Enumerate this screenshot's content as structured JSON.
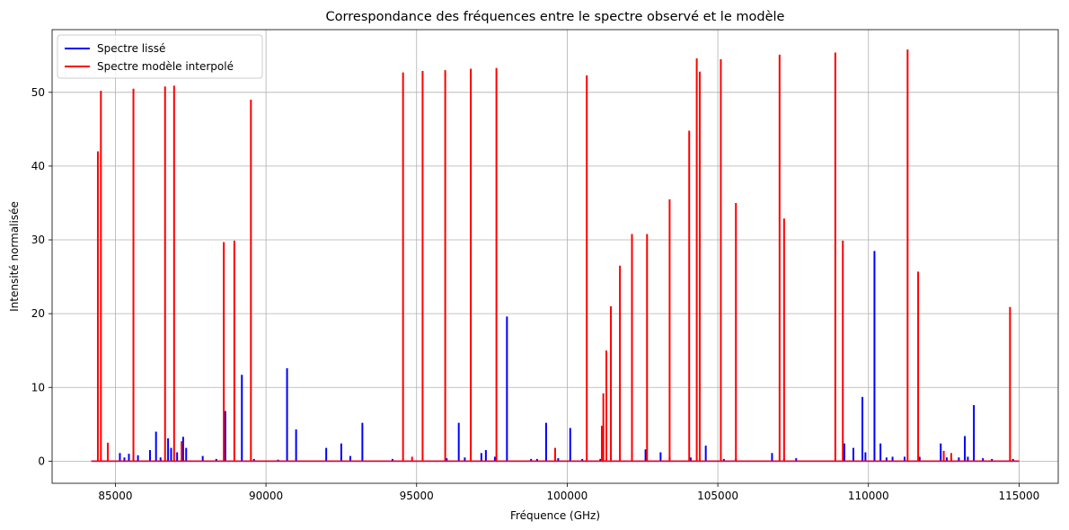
{
  "chart_data": {
    "type": "line",
    "title": "Correspondance des fréquences entre le spectre observé et le modèle",
    "xlabel": "Fréquence (GHz)",
    "ylabel": "Intensité normalisée",
    "xlim": [
      82900,
      116300
    ],
    "ylim": [
      -3,
      58.5
    ],
    "xticks": [
      85000,
      90000,
      95000,
      100000,
      105000,
      110000,
      115000
    ],
    "yticks": [
      0,
      10,
      20,
      30,
      40,
      50
    ],
    "grid": true,
    "legend_position": "top-left",
    "colors": {
      "observed": "#0000ff",
      "model": "#ff0000",
      "grid": "#b0b0b0"
    },
    "series": [
      {
        "name": "Spectre lissé",
        "color": "#0000ff",
        "x_range": [
          84200,
          115000
        ],
        "peaks": [
          [
            85150,
            1.1
          ],
          [
            85300,
            0.5
          ],
          [
            85450,
            1.0
          ],
          [
            85600,
            1.2
          ],
          [
            85750,
            0.8
          ],
          [
            86150,
            1.5
          ],
          [
            86350,
            4.0
          ],
          [
            86500,
            0.5
          ],
          [
            86750,
            3.1
          ],
          [
            86850,
            1.8
          ],
          [
            87050,
            1.2
          ],
          [
            87250,
            3.3
          ],
          [
            87350,
            1.8
          ],
          [
            87900,
            0.7
          ],
          [
            88350,
            0.3
          ],
          [
            88650,
            6.8
          ],
          [
            89200,
            11.7
          ],
          [
            89600,
            0.3
          ],
          [
            90400,
            0.2
          ],
          [
            90700,
            12.6
          ],
          [
            91000,
            4.3
          ],
          [
            92000,
            1.8
          ],
          [
            92500,
            2.4
          ],
          [
            92800,
            0.7
          ],
          [
            93200,
            5.2
          ],
          [
            94200,
            0.3
          ],
          [
            96000,
            0.4
          ],
          [
            96400,
            5.2
          ],
          [
            96600,
            0.5
          ],
          [
            97150,
            1.1
          ],
          [
            97300,
            1.5
          ],
          [
            97600,
            0.6
          ],
          [
            98000,
            19.6
          ],
          [
            98800,
            0.3
          ],
          [
            99000,
            0.3
          ],
          [
            99300,
            5.2
          ],
          [
            99700,
            0.4
          ],
          [
            100100,
            4.5
          ],
          [
            100500,
            0.3
          ],
          [
            101100,
            0.3
          ],
          [
            102600,
            1.6
          ],
          [
            103100,
            1.2
          ],
          [
            103400,
            0.6
          ],
          [
            104100,
            0.5
          ],
          [
            104600,
            2.1
          ],
          [
            105200,
            0.3
          ],
          [
            105600,
            0.3
          ],
          [
            106800,
            1.1
          ],
          [
            107200,
            0.3
          ],
          [
            107600,
            0.4
          ],
          [
            109200,
            2.4
          ],
          [
            109500,
            1.8
          ],
          [
            109800,
            8.7
          ],
          [
            109900,
            1.2
          ],
          [
            110200,
            28.5
          ],
          [
            110400,
            2.4
          ],
          [
            110600,
            0.5
          ],
          [
            110800,
            0.6
          ],
          [
            111200,
            0.6
          ],
          [
            111700,
            0.6
          ],
          [
            112400,
            2.4
          ],
          [
            112600,
            0.5
          ],
          [
            113000,
            0.5
          ],
          [
            113200,
            3.4
          ],
          [
            113300,
            0.6
          ],
          [
            113500,
            7.6
          ],
          [
            113800,
            0.4
          ],
          [
            114100,
            0.3
          ],
          [
            114800,
            0.3
          ]
        ]
      },
      {
        "name": "Spectre modèle interpolé",
        "color": "#ff0000",
        "x_range": [
          84200,
          115000
        ],
        "peaks": [
          [
            84420,
            42.0
          ],
          [
            84520,
            50.2
          ],
          [
            84750,
            2.5
          ],
          [
            85600,
            50.5
          ],
          [
            86650,
            50.8
          ],
          [
            86950,
            50.9
          ],
          [
            87200,
            2.7
          ],
          [
            88600,
            29.7
          ],
          [
            88950,
            29.9
          ],
          [
            89500,
            49.0
          ],
          [
            94550,
            52.7
          ],
          [
            94850,
            0.6
          ],
          [
            95200,
            52.9
          ],
          [
            95950,
            53.0
          ],
          [
            96800,
            53.2
          ],
          [
            97650,
            53.3
          ],
          [
            99600,
            1.8
          ],
          [
            100650,
            52.3
          ],
          [
            101150,
            4.8
          ],
          [
            101200,
            9.2
          ],
          [
            101300,
            15.0
          ],
          [
            101450,
            21.0
          ],
          [
            101750,
            26.5
          ],
          [
            102150,
            30.8
          ],
          [
            102650,
            30.8
          ],
          [
            103400,
            35.5
          ],
          [
            104050,
            44.8
          ],
          [
            104300,
            54.6
          ],
          [
            104400,
            52.8
          ],
          [
            105100,
            54.5
          ],
          [
            105600,
            35.0
          ],
          [
            107050,
            55.1
          ],
          [
            107200,
            32.9
          ],
          [
            108900,
            55.4
          ],
          [
            109150,
            29.9
          ],
          [
            111300,
            55.8
          ],
          [
            111650,
            25.7
          ],
          [
            112500,
            1.4
          ],
          [
            112750,
            1.1
          ],
          [
            114700,
            20.9
          ]
        ]
      }
    ]
  }
}
